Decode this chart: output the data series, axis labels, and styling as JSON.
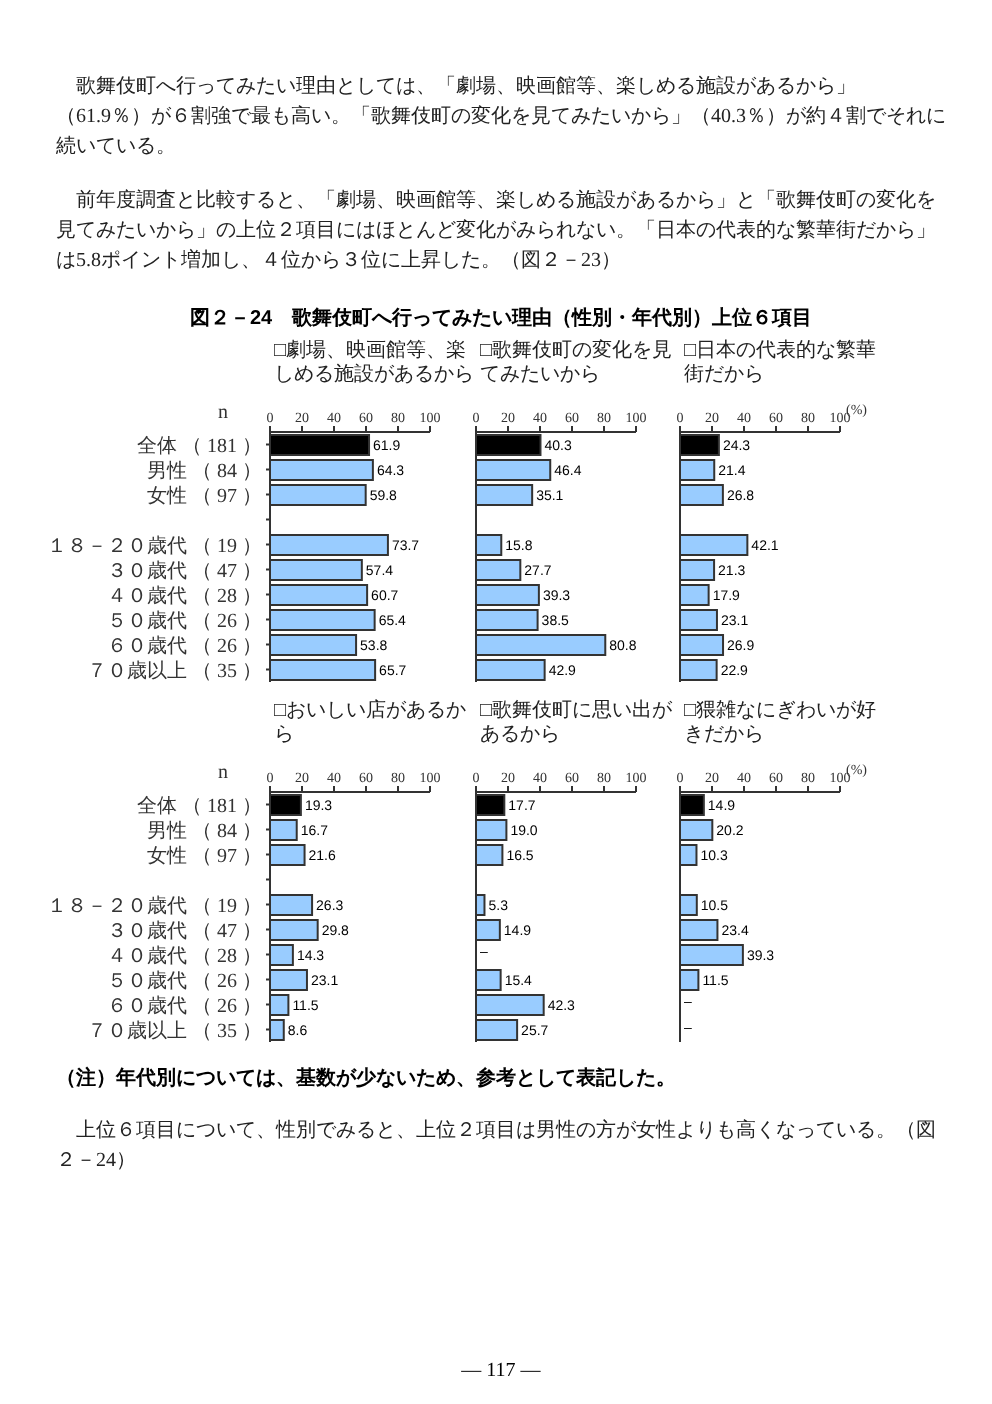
{
  "chart_data": [
    {
      "type": "other",
      "title": "図２－24　歌舞伎町へ行ってみたい理由（性別・年代別）上位６項目",
      "annotations": [
        "歌舞伎町へ行ってみたい理由としては、「劇場、映画館等、楽しめる施設があるから」（61.9％）が６割強で最も高い。「歌舞伎町の変化を見てみたいから」（40.3％）が約４割でそれに続いている。",
        "前年度調査と比較すると、「劇場、映画館等、楽しめる施設があるから」と「歌舞伎町の変化を見てみたいから」の上位２項目にはほとんど変化がみられない。「日本の代表的な繁華街だから」は5.8ポイント増加し、４位から３位に上昇した。（図２－23）"
      ]
    },
    {
      "type": "bar",
      "orientation": "horizontal",
      "title": "□劇場、映画館等、楽しめる施設があるから",
      "annotations": [
        "n"
      ],
      "categories": [
        "全体 （ 181 ）",
        "男性 （ 84 ）",
        "女性 （ 97 ）",
        null,
        "１８－２０歳代 （ 19 ）",
        "３０歳代 （ 47 ）",
        "４０歳代 （ 28 ）",
        "５０歳代 （ 26 ）",
        "６０歳代 （ 26 ）",
        "７０歳以上 （ 35 ）"
      ],
      "values": [
        61.9,
        64.3,
        59.8,
        null,
        73.7,
        57.4,
        60.7,
        65.4,
        53.8,
        65.7
      ],
      "colors": [
        "#000000",
        "#99ccff",
        "#99ccff",
        "#99ccff",
        "#99ccff",
        "#99ccff",
        "#99ccff",
        "#99ccff",
        "#99ccff",
        "#99ccff"
      ],
      "xlim": [
        0,
        100
      ],
      "xticks": [
        0,
        20,
        40,
        60,
        80,
        100
      ],
      "data_labels": true
    },
    {
      "type": "bar",
      "orientation": "horizontal",
      "title": "□歌舞伎町の変化を見てみたいから",
      "tick_labels": "x",
      "categories": [
        null,
        null,
        null,
        null,
        null,
        null,
        null,
        null,
        null,
        null
      ],
      "values": [
        40.3,
        46.4,
        35.1,
        null,
        15.8,
        27.7,
        39.3,
        38.5,
        80.8,
        42.9
      ],
      "colors": [
        "#000000",
        "#99ccff",
        "#99ccff",
        "#99ccff",
        "#99ccff",
        "#99ccff",
        "#99ccff",
        "#99ccff",
        "#99ccff",
        "#99ccff"
      ],
      "xlim": [
        0,
        100
      ],
      "xticks": [
        0,
        20,
        40,
        60,
        80,
        100
      ],
      "data_labels": true
    },
    {
      "type": "bar",
      "orientation": "horizontal",
      "title": "□日本の代表的な繁華街だから",
      "xlabel": "(%)",
      "tick_labels": "x",
      "categories": [
        null,
        null,
        null,
        null,
        null,
        null,
        null,
        null,
        null,
        null
      ],
      "values": [
        24.3,
        21.4,
        26.8,
        null,
        42.1,
        21.3,
        17.9,
        23.1,
        26.9,
        22.9
      ],
      "colors": [
        "#000000",
        "#99ccff",
        "#99ccff",
        "#99ccff",
        "#99ccff",
        "#99ccff",
        "#99ccff",
        "#99ccff",
        "#99ccff",
        "#99ccff"
      ],
      "xlim": [
        0,
        100
      ],
      "xticks": [
        0,
        20,
        40,
        60,
        80,
        100
      ],
      "data_labels": true
    },
    {
      "type": "bar",
      "orientation": "horizontal",
      "title": "□おいしい店があるから",
      "annotations": [
        "n"
      ],
      "categories": [
        "全体 （ 181 ）",
        "男性 （ 84 ）",
        "女性 （ 97 ）",
        null,
        "１８－２０歳代 （ 19 ）",
        "３０歳代 （ 47 ）",
        "４０歳代 （ 28 ）",
        "５０歳代 （ 26 ）",
        "６０歳代 （ 26 ）",
        "７０歳以上 （ 35 ）"
      ],
      "values": [
        19.3,
        16.7,
        21.6,
        null,
        26.3,
        29.8,
        14.3,
        23.1,
        11.5,
        8.6
      ],
      "colors": [
        "#000000",
        "#99ccff",
        "#99ccff",
        "#99ccff",
        "#99ccff",
        "#99ccff",
        "#99ccff",
        "#99ccff",
        "#99ccff",
        "#99ccff"
      ],
      "xlim": [
        0,
        100
      ],
      "xticks": [
        0,
        20,
        40,
        60,
        80,
        100
      ],
      "data_labels": true
    },
    {
      "type": "bar",
      "orientation": "horizontal",
      "title": "□歌舞伎町に思い出があるから",
      "tick_labels": "x",
      "categories": [
        null,
        null,
        null,
        null,
        null,
        null,
        null,
        null,
        null,
        null
      ],
      "values": [
        17.7,
        19.0,
        16.5,
        null,
        5.3,
        14.9,
        null,
        15.4,
        42.3,
        25.7
      ],
      "value_labels": [
        "17.7",
        "19.0",
        "16.5",
        null,
        "5.3",
        "14.9",
        "–",
        "15.4",
        "42.3",
        "25.7"
      ],
      "colors": [
        "#000000",
        "#99ccff",
        "#99ccff",
        "#99ccff",
        "#99ccff",
        "#99ccff",
        "#99ccff",
        "#99ccff",
        "#99ccff",
        "#99ccff"
      ],
      "xlim": [
        0,
        100
      ],
      "xticks": [
        0,
        20,
        40,
        60,
        80,
        100
      ]
    },
    {
      "type": "bar",
      "orientation": "horizontal",
      "title": "□猥雑なにぎわいが好きだから",
      "xlabel": "(%)",
      "tick_labels": "x",
      "categories": [
        null,
        null,
        null,
        null,
        null,
        null,
        null,
        null,
        null,
        null
      ],
      "values": [
        14.9,
        20.2,
        10.3,
        null,
        10.5,
        23.4,
        39.3,
        11.5,
        null,
        null
      ],
      "value_labels": [
        "14.9",
        "20.2",
        "10.3",
        null,
        "10.5",
        "23.4",
        "39.3",
        "11.5",
        "–",
        "–"
      ],
      "colors": [
        "#000000",
        "#99ccff",
        "#99ccff",
        "#99ccff",
        "#99ccff",
        "#99ccff",
        "#99ccff",
        "#99ccff",
        "#99ccff",
        "#99ccff"
      ],
      "xlim": [
        0,
        100
      ],
      "xticks": [
        0,
        20,
        40,
        60,
        80,
        100
      ]
    },
    {
      "type": "other",
      "annotations": [
        "（注）年代別については、基数が少ないため、参考として表記した。",
        "上位６項目について、性別でみると、上位２項目は男性の方が女性よりも高くなっている。（図２－24）",
        "— 117 —"
      ]
    }
  ]
}
